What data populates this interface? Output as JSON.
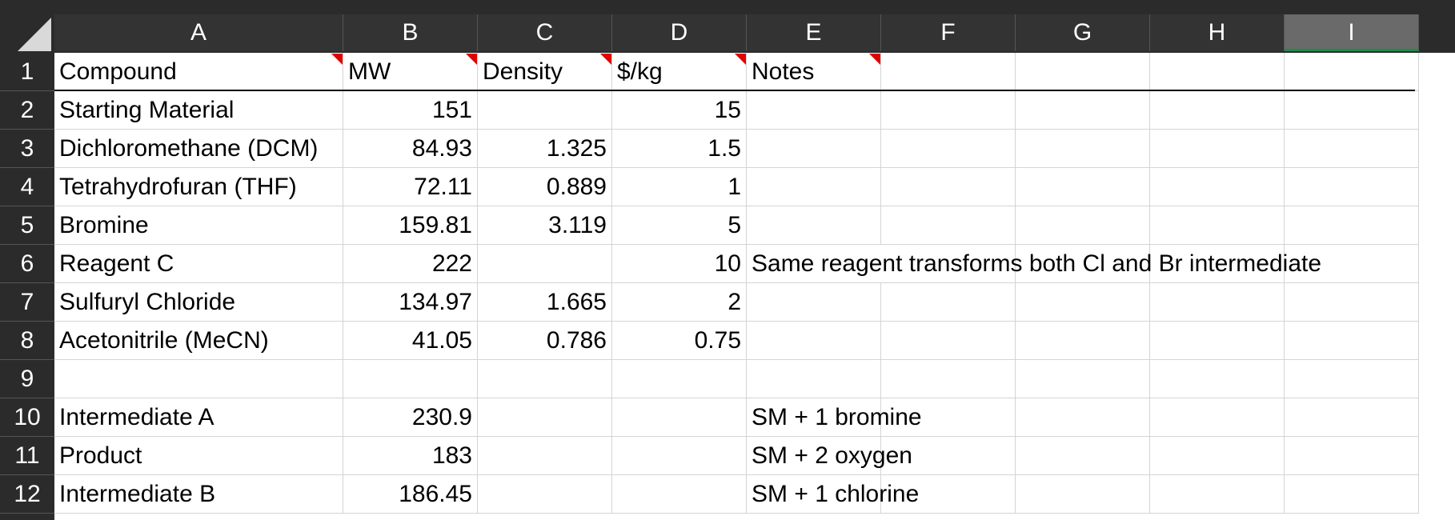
{
  "columns": [
    "A",
    "B",
    "C",
    "D",
    "E",
    "F",
    "G",
    "H",
    "I"
  ],
  "selected_column": "I",
  "rows": [
    "1",
    "2",
    "3",
    "4",
    "5",
    "6",
    "7",
    "8",
    "9",
    "10",
    "11",
    "12"
  ],
  "cells": {
    "A1": "Compound",
    "B1": "MW",
    "C1": "Density",
    "D1": "$/kg",
    "E1": "Notes",
    "A2": "Starting Material",
    "B2": "151",
    "D2": "15",
    "A3": "Dichloromethane (DCM)",
    "B3": "84.93",
    "C3": "1.325",
    "D3": "1.5",
    "A4": "Tetrahydrofuran (THF)",
    "B4": "72.11",
    "C4": "0.889",
    "D4": "1",
    "A5": "Bromine",
    "B5": "159.81",
    "C5": "3.119",
    "D5": "5",
    "A6": "Reagent C",
    "B6": "222",
    "D6": "10",
    "E6": "Same reagent transforms both Cl and Br intermediate",
    "A7": "Sulfuryl Chloride",
    "B7": "134.97",
    "C7": "1.665",
    "D7": "2",
    "A8": "Acetonitrile (MeCN)",
    "B8": "41.05",
    "C8": "0.786",
    "D8": "0.75",
    "A10": "Intermediate A",
    "B10": "230.9",
    "E10": "SM + 1 bromine",
    "A11": "Product",
    "B11": "183",
    "E11": "SM + 2 oxygen",
    "A12": "Intermediate B",
    "B12": "186.45",
    "E12": "SM + 1 chlorine"
  },
  "comment_cells": [
    "A1",
    "B1",
    "C1",
    "D1",
    "E1"
  ],
  "colors": {
    "header_bg": "#2b2b2b",
    "header_text": "#ffffff",
    "selected_header": "#6a6a6a",
    "selection_accent": "#1e8c45",
    "comment_marker": "#e00000",
    "gridline": "#d4d4d4"
  }
}
